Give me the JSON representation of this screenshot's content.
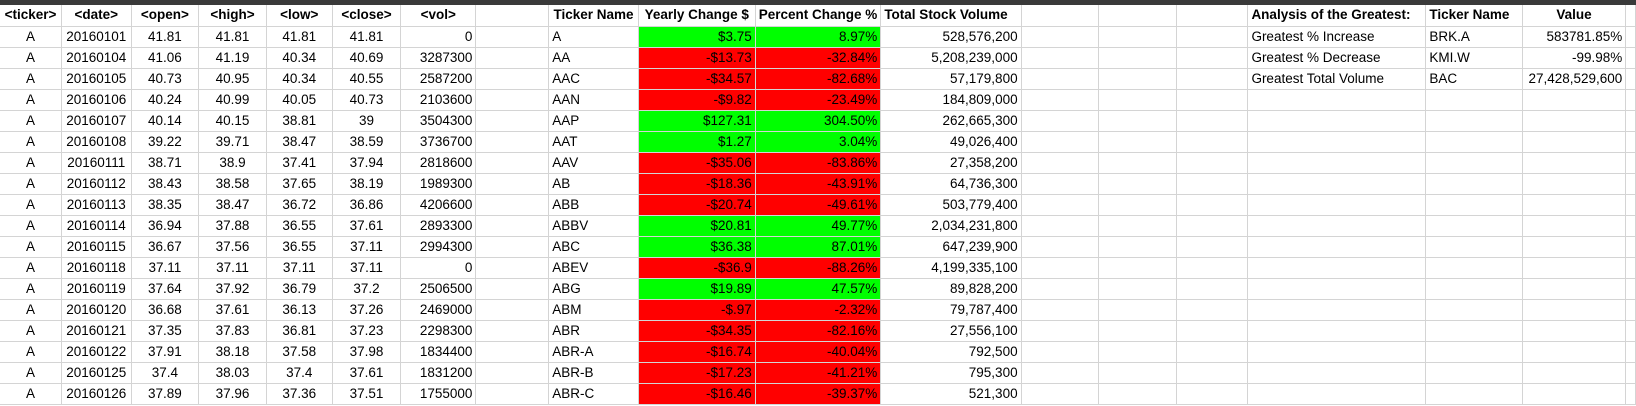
{
  "headers": {
    "ticker": "<ticker>",
    "date": "<date>",
    "open": "<open>",
    "high": "<high>",
    "low": "<low>",
    "close": "<close>",
    "vol": "<vol>",
    "ticker_name": "Ticker Name",
    "yearly_change": "Yearly Change $",
    "percent_change": "Percent Change %",
    "total_volume": "Total Stock Volume",
    "analysis": "Analysis of the Greatest:",
    "analysis_ticker": "Ticker Name",
    "value": "Value"
  },
  "colors": {
    "positive": "#00ff00",
    "negative": "#ff0000",
    "gridline": "#d4d4d4"
  },
  "rows": [
    {
      "ticker": "A",
      "date": "20160101",
      "open": "41.81",
      "high": "41.81",
      "low": "41.81",
      "close": "41.81",
      "vol": "0",
      "name": "A",
      "yc": "$3.75",
      "pc": "8.97%",
      "tv": "528,576,200",
      "sign": "pos"
    },
    {
      "ticker": "A",
      "date": "20160104",
      "open": "41.06",
      "high": "41.19",
      "low": "40.34",
      "close": "40.69",
      "vol": "3287300",
      "name": "AA",
      "yc": "-$13.73",
      "pc": "-32.84%",
      "tv": "5,208,239,000",
      "sign": "neg"
    },
    {
      "ticker": "A",
      "date": "20160105",
      "open": "40.73",
      "high": "40.95",
      "low": "40.34",
      "close": "40.55",
      "vol": "2587200",
      "name": "AAC",
      "yc": "-$34.57",
      "pc": "-82.68%",
      "tv": "57,179,800",
      "sign": "neg"
    },
    {
      "ticker": "A",
      "date": "20160106",
      "open": "40.24",
      "high": "40.99",
      "low": "40.05",
      "close": "40.73",
      "vol": "2103600",
      "name": "AAN",
      "yc": "-$9.82",
      "pc": "-23.49%",
      "tv": "184,809,000",
      "sign": "neg"
    },
    {
      "ticker": "A",
      "date": "20160107",
      "open": "40.14",
      "high": "40.15",
      "low": "38.81",
      "close": "39",
      "vol": "3504300",
      "name": "AAP",
      "yc": "$127.31",
      "pc": "304.50%",
      "tv": "262,665,300",
      "sign": "pos"
    },
    {
      "ticker": "A",
      "date": "20160108",
      "open": "39.22",
      "high": "39.71",
      "low": "38.47",
      "close": "38.59",
      "vol": "3736700",
      "name": "AAT",
      "yc": "$1.27",
      "pc": "3.04%",
      "tv": "49,026,400",
      "sign": "pos"
    },
    {
      "ticker": "A",
      "date": "20160111",
      "open": "38.71",
      "high": "38.9",
      "low": "37.41",
      "close": "37.94",
      "vol": "2818600",
      "name": "AAV",
      "yc": "-$35.06",
      "pc": "-83.86%",
      "tv": "27,358,200",
      "sign": "neg"
    },
    {
      "ticker": "A",
      "date": "20160112",
      "open": "38.43",
      "high": "38.58",
      "low": "37.65",
      "close": "38.19",
      "vol": "1989300",
      "name": "AB",
      "yc": "-$18.36",
      "pc": "-43.91%",
      "tv": "64,736,300",
      "sign": "neg"
    },
    {
      "ticker": "A",
      "date": "20160113",
      "open": "38.35",
      "high": "38.47",
      "low": "36.72",
      "close": "36.86",
      "vol": "4206600",
      "name": "ABB",
      "yc": "-$20.74",
      "pc": "-49.61%",
      "tv": "503,779,400",
      "sign": "neg"
    },
    {
      "ticker": "A",
      "date": "20160114",
      "open": "36.94",
      "high": "37.88",
      "low": "36.55",
      "close": "37.61",
      "vol": "2893300",
      "name": "ABBV",
      "yc": "$20.81",
      "pc": "49.77%",
      "tv": "2,034,231,800",
      "sign": "pos"
    },
    {
      "ticker": "A",
      "date": "20160115",
      "open": "36.67",
      "high": "37.56",
      "low": "36.55",
      "close": "37.11",
      "vol": "2994300",
      "name": "ABC",
      "yc": "$36.38",
      "pc": "87.01%",
      "tv": "647,239,900",
      "sign": "pos"
    },
    {
      "ticker": "A",
      "date": "20160118",
      "open": "37.11",
      "high": "37.11",
      "low": "37.11",
      "close": "37.11",
      "vol": "0",
      "name": "ABEV",
      "yc": "-$36.9",
      "pc": "-88.26%",
      "tv": "4,199,335,100",
      "sign": "neg"
    },
    {
      "ticker": "A",
      "date": "20160119",
      "open": "37.64",
      "high": "37.92",
      "low": "36.79",
      "close": "37.2",
      "vol": "2506500",
      "name": "ABG",
      "yc": "$19.89",
      "pc": "47.57%",
      "tv": "89,828,200",
      "sign": "pos"
    },
    {
      "ticker": "A",
      "date": "20160120",
      "open": "36.68",
      "high": "37.61",
      "low": "36.13",
      "close": "37.26",
      "vol": "2469000",
      "name": "ABM",
      "yc": "-$.97",
      "pc": "-2.32%",
      "tv": "79,787,400",
      "sign": "neg"
    },
    {
      "ticker": "A",
      "date": "20160121",
      "open": "37.35",
      "high": "37.83",
      "low": "36.81",
      "close": "37.23",
      "vol": "2298300",
      "name": "ABR",
      "yc": "-$34.35",
      "pc": "-82.16%",
      "tv": "27,556,100",
      "sign": "neg"
    },
    {
      "ticker": "A",
      "date": "20160122",
      "open": "37.91",
      "high": "38.18",
      "low": "37.58",
      "close": "37.98",
      "vol": "1834400",
      "name": "ABR-A",
      "yc": "-$16.74",
      "pc": "-40.04%",
      "tv": "792,500",
      "sign": "neg"
    },
    {
      "ticker": "A",
      "date": "20160125",
      "open": "37.4",
      "high": "38.03",
      "low": "37.4",
      "close": "37.61",
      "vol": "1831200",
      "name": "ABR-B",
      "yc": "-$17.23",
      "pc": "-41.21%",
      "tv": "795,300",
      "sign": "neg"
    },
    {
      "ticker": "A",
      "date": "20160126",
      "open": "37.89",
      "high": "37.96",
      "low": "37.36",
      "close": "37.51",
      "vol": "1755000",
      "name": "ABR-C",
      "yc": "-$16.46",
      "pc": "-39.37%",
      "tv": "521,300",
      "sign": "neg"
    }
  ],
  "analysis": [
    {
      "label": "Greatest % Increase",
      "ticker": "BRK.A",
      "value": "583781.85%"
    },
    {
      "label": "Greatest % Decrease",
      "ticker": "KMI.W",
      "value": "-99.98%"
    },
    {
      "label": "Greatest Total Volume",
      "ticker": "BAC",
      "value": "27,428,529,600"
    }
  ]
}
